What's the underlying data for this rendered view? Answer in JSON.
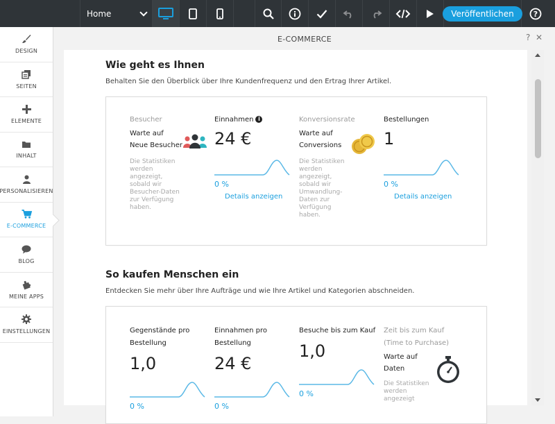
{
  "topbar": {
    "page_select": "Home",
    "publish_label": "Veröffentlichen",
    "icons": [
      "desktop-icon",
      "tablet-icon",
      "mobile-icon",
      "search-icon",
      "info-icon",
      "check-icon",
      "undo-icon",
      "redo-icon",
      "code-icon",
      "play-icon",
      "help-icon"
    ]
  },
  "sidebar": {
    "items": [
      {
        "label": "DESIGN",
        "icon": "brush-icon"
      },
      {
        "label": "SEITEN",
        "icon": "pages-icon"
      },
      {
        "label": "ELEMENTE",
        "icon": "plus-icon"
      },
      {
        "label": "INHALT",
        "icon": "folder-icon"
      },
      {
        "label": "PERSONALISIEREN",
        "icon": "person-icon"
      },
      {
        "label": "E-COMMERCE",
        "icon": "cart-icon"
      },
      {
        "label": "BLOG",
        "icon": "speech-bubble-icon"
      },
      {
        "label": "MEINE APPS",
        "icon": "puzzle-icon"
      },
      {
        "label": "EINSTELLUNGEN",
        "icon": "gear-icon"
      }
    ],
    "active_color": "#1a9fde"
  },
  "panel": {
    "title": "E-COMMERCE",
    "help": "?",
    "close": "✕"
  },
  "section1": {
    "heading": "Wie geht es Ihnen",
    "subtitle": "Behalten Sie den Überblick über Ihre Kundenfrequenz und den Ertrag Ihrer Artikel.",
    "visitors": {
      "title": "Besucher",
      "line1": "Warte auf",
      "line2": "Neue Besucher",
      "note": [
        "Die Statistiken",
        "werden",
        "angezeigt,",
        "sobald wir",
        "Besucher-Daten",
        "zur Verfügung",
        "haben."
      ]
    },
    "revenue": {
      "title": "Einnahmen",
      "value": "24 €",
      "pct": "0 %",
      "link": "Details anzeigen"
    },
    "conversion": {
      "title": "Konversionsrate",
      "line1": "Warte auf",
      "line2": "Conversions",
      "note": [
        "Die Statistiken",
        "werden",
        "angezeigt,",
        "sobald wir",
        "Umwandlung-",
        "Daten zur",
        "Verfügung",
        "haben."
      ]
    },
    "orders": {
      "title": "Bestellungen",
      "value": "1",
      "pct": "0 %",
      "link": "Details anzeigen"
    }
  },
  "section2": {
    "heading": "So kaufen Menschen ein",
    "subtitle": "Entdecken Sie mehr über Ihre Aufträge und wie Ihre Artikel und Kategorien abschneiden.",
    "items_per_order": {
      "title1": "Gegenstände pro",
      "title2": "Bestellung",
      "value": "1,0",
      "pct": "0 %"
    },
    "revenue_per_order": {
      "title1": "Einnahmen pro",
      "title2": "Bestellung",
      "value": "24 €",
      "pct": "0 %"
    },
    "visits_to_purchase": {
      "title1": "Besuche bis zum Kauf",
      "value": "1,0",
      "pct": "0 %"
    },
    "time_to_purchase": {
      "title1": "Zeit bis zum Kauf",
      "title2": "(Time to Purchase)",
      "line1": "Warte auf",
      "line2": "Daten",
      "note": [
        "Die Statistiken",
        "werden",
        "angezeigt"
      ]
    }
  }
}
